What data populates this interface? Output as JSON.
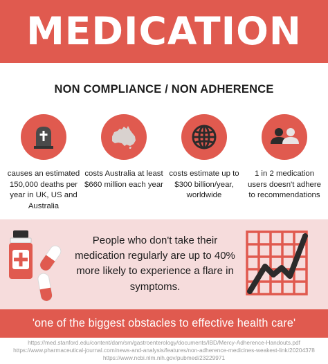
{
  "header": {
    "title": "MEDICATION"
  },
  "subtitle": "NON COMPLIANCE / NON ADHERENCE",
  "colors": {
    "accent": "#e05a4f",
    "pink": "#f6dcdc",
    "dark": "#333333"
  },
  "stats": [
    {
      "icon": "gravestone-icon",
      "text": "causes an estimated 150,000 deaths per year in UK, US and Australia"
    },
    {
      "icon": "australia-map-icon",
      "text": "costs Australia at least $660 million each year"
    },
    {
      "icon": "globe-icon",
      "text": "costs estimate up to $300 billion/year, worldwide"
    },
    {
      "icon": "people-icon",
      "text": "1 in 2 medication users doesn't adhere to recommendations"
    }
  ],
  "middle": {
    "text": "People who don't take their medication regularly are up to 40% more likely to experience a flare in symptoms."
  },
  "quote": "'one of the biggest obstacles to effective health care'",
  "sources": [
    "https://med.stanford.edu/content/dam/sm/gastroenterology/documents/IBD/Mercy-Adherence-Handouts.pdf",
    "https://www.pharmaceutical-journal.com/news-and-analysis/features/non-adherence-medicines-weakest-link/20204378",
    "https://www.ncbi.nlm.nih.gov/pubmed/23229971"
  ]
}
